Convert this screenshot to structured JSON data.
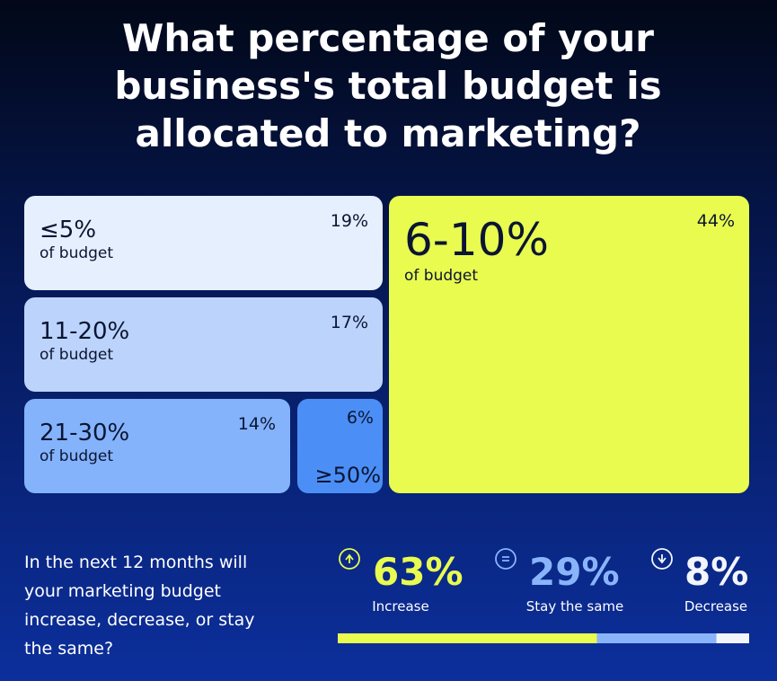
{
  "chart_data": [
    {
      "type": "treemap",
      "title": "What percentage of your business's total budget is allocated to marketing?",
      "categories": [
        "≤5%",
        "6-10%",
        "11-20%",
        "21-30%",
        "≥50%"
      ],
      "notes": [
        "of budget",
        "of budget",
        "of budget",
        "of budget",
        null
      ],
      "values": [
        19,
        44,
        17,
        14,
        6
      ],
      "value_labels": [
        "19%",
        "44%",
        "17%",
        "14%",
        "6%"
      ],
      "colors": [
        "#e6effd",
        "#e9fb4f",
        "#bcd3fb",
        "#84b3fb",
        "#4b8ff6"
      ]
    },
    {
      "type": "stacked_bar",
      "title": "In the next 12 months will your marketing budget increase, decrease, or stay the same?",
      "series": [
        {
          "name": "Increase",
          "color": "#e9fb4f",
          "values": [
            63
          ],
          "value_labels": [
            "63%"
          ]
        },
        {
          "name": "Stay the same",
          "color": "#8ab4fa",
          "values": [
            29
          ],
          "value_labels": [
            "29%"
          ]
        },
        {
          "name": "Decrease",
          "color": "#f2f5fb",
          "values": [
            8
          ],
          "value_labels": [
            "8%"
          ]
        }
      ]
    }
  ]
}
